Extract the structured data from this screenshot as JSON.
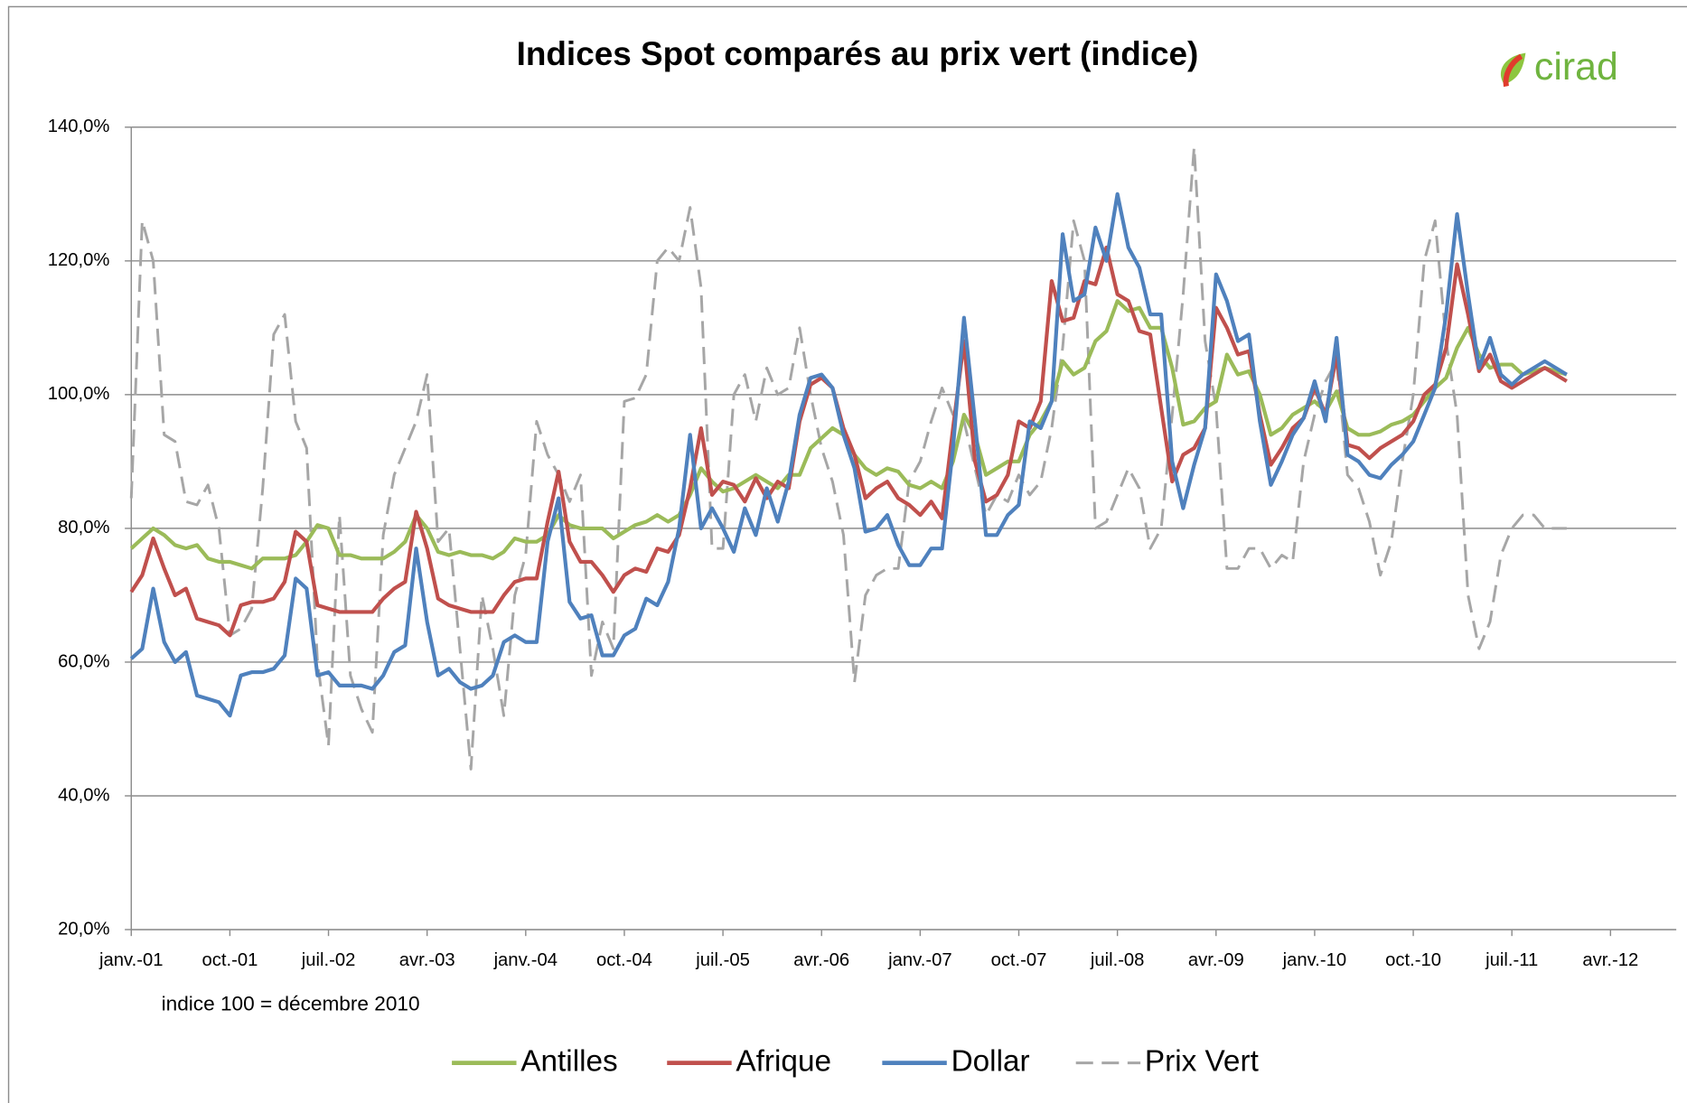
{
  "chart_data": {
    "type": "line",
    "title": "Indices Spot comparés au prix vert (indice)",
    "logo": "cirad",
    "annotation": "indice 100 = décembre 2010",
    "x": [
      "2001-01",
      "2001-02",
      "2001-03",
      "2001-04",
      "2001-05",
      "2001-06",
      "2001-07",
      "2001-08",
      "2001-09",
      "2001-10",
      "2001-11",
      "2001-12",
      "2002-01",
      "2002-02",
      "2002-03",
      "2002-04",
      "2002-05",
      "2002-06",
      "2002-07",
      "2002-08",
      "2002-09",
      "2002-10",
      "2002-11",
      "2002-12",
      "2003-01",
      "2003-02",
      "2003-03",
      "2003-04",
      "2003-05",
      "2003-06",
      "2003-07",
      "2003-08",
      "2003-09",
      "2003-10",
      "2003-11",
      "2003-12",
      "2004-01",
      "2004-02",
      "2004-03",
      "2004-04",
      "2004-05",
      "2004-06",
      "2004-07",
      "2004-08",
      "2004-09",
      "2004-10",
      "2004-11",
      "2004-12",
      "2005-01",
      "2005-02",
      "2005-03",
      "2005-04",
      "2005-05",
      "2005-06",
      "2005-07",
      "2005-08",
      "2005-09",
      "2005-10",
      "2005-11",
      "2005-12",
      "2006-01",
      "2006-02",
      "2006-03",
      "2006-04",
      "2006-05",
      "2006-06",
      "2006-07",
      "2006-08",
      "2006-09",
      "2006-10",
      "2006-11",
      "2006-12",
      "2007-01",
      "2007-02",
      "2007-03",
      "2007-04",
      "2007-05",
      "2007-06",
      "2007-07",
      "2007-08",
      "2007-09",
      "2007-10",
      "2007-11",
      "2007-12",
      "2008-01",
      "2008-02",
      "2008-03",
      "2008-04",
      "2008-05",
      "2008-06",
      "2008-07",
      "2008-08",
      "2008-09",
      "2008-10",
      "2008-11",
      "2008-12",
      "2009-01",
      "2009-02",
      "2009-03",
      "2009-04",
      "2009-05",
      "2009-06",
      "2009-07",
      "2009-08",
      "2009-09",
      "2009-10",
      "2009-11",
      "2009-12",
      "2010-01",
      "2010-02",
      "2010-03",
      "2010-04",
      "2010-05",
      "2010-06",
      "2010-07",
      "2010-08",
      "2010-09",
      "2010-10",
      "2010-11",
      "2010-12",
      "2011-01",
      "2011-02",
      "2011-03",
      "2011-04",
      "2011-05",
      "2011-06",
      "2011-07",
      "2011-08",
      "2011-09",
      "2011-10",
      "2011-11",
      "2011-12"
    ],
    "series": [
      {
        "name": "Antilles",
        "color": "#9bbb59",
        "values": [
          77,
          78.5,
          80,
          79,
          77.5,
          77,
          77.5,
          75.5,
          75,
          75,
          74.5,
          74,
          75.5,
          75.5,
          75.5,
          76,
          78,
          80.5,
          80,
          76,
          76,
          75.5,
          75.5,
          75.5,
          76.5,
          78,
          82,
          80,
          76.5,
          76,
          76.5,
          76,
          76,
          75.5,
          76.5,
          78.5,
          78,
          78,
          79,
          82,
          80.5,
          80,
          80,
          80,
          78.5,
          79.5,
          80.5,
          81,
          82,
          81,
          82,
          85,
          89,
          87,
          85.5,
          86,
          87,
          88,
          87,
          86,
          88,
          88,
          92,
          93.5,
          95,
          94,
          91,
          89,
          88,
          89,
          88.5,
          86.5,
          86,
          87,
          86,
          90,
          97,
          94,
          88,
          89,
          90,
          90,
          94,
          96,
          99,
          105,
          103,
          104,
          108,
          109.5,
          114,
          112.5,
          113,
          110,
          110,
          104,
          95.5,
          96,
          98,
          99,
          106,
          103,
          103.5,
          100,
          94,
          95,
          97,
          98,
          99,
          97.5,
          100.5,
          95,
          94,
          94,
          94.5,
          95.5,
          96,
          97,
          99,
          101,
          102.5,
          107,
          110,
          106,
          104,
          104.5,
          104.5,
          103,
          103.5,
          104,
          103.5,
          103
        ]
      },
      {
        "name": "Afrique",
        "color": "#c0504d",
        "values": [
          70.5,
          73,
          78.5,
          74,
          70,
          71,
          66.5,
          66,
          65.5,
          64,
          68.5,
          69,
          69,
          69.5,
          72,
          79.5,
          78,
          68.5,
          68,
          67.5,
          67.5,
          67.5,
          67.5,
          69.5,
          71,
          72,
          82.5,
          77,
          69.5,
          68.5,
          68,
          67.5,
          67.5,
          67.5,
          70,
          72,
          72.5,
          72.5,
          81,
          88.5,
          78,
          75,
          75,
          73,
          70.5,
          73,
          74,
          73.5,
          77,
          76.5,
          79,
          86,
          95,
          85,
          87,
          86.5,
          84,
          87.5,
          84.5,
          87,
          86,
          96,
          101.5,
          102.5,
          101,
          95,
          91,
          84.5,
          86,
          87,
          84.5,
          83.5,
          82,
          84,
          81.5,
          95,
          108,
          90,
          84,
          85,
          88,
          96,
          95,
          99,
          117,
          111,
          111.5,
          117,
          116.5,
          122,
          115,
          114,
          109.5,
          109,
          98,
          87,
          91,
          92,
          95,
          113,
          110,
          106,
          106.5,
          97,
          89.5,
          92,
          95,
          96.5,
          101,
          97,
          106,
          92.5,
          92,
          90.5,
          92,
          93,
          94,
          96,
          100,
          101.5,
          107,
          119.5,
          112,
          103.5,
          106,
          102,
          101,
          102,
          103,
          104,
          103,
          102
        ]
      },
      {
        "name": "Dollar",
        "color": "#4f81bd",
        "values": [
          60.5,
          62,
          71,
          63,
          60,
          61.5,
          55,
          54.5,
          54,
          52,
          58,
          58.5,
          58.5,
          59,
          61,
          72.5,
          71,
          58,
          58.5,
          56.5,
          56.5,
          56.5,
          56,
          58,
          61.5,
          62.5,
          77,
          66,
          58,
          59,
          57,
          56,
          56.5,
          58,
          63,
          64,
          63,
          63,
          78,
          84.5,
          69,
          66.5,
          67,
          61,
          61,
          64,
          65,
          69.5,
          68.5,
          72,
          80,
          94,
          80,
          83,
          80,
          76.5,
          83,
          79,
          86,
          81,
          87,
          97,
          102.5,
          103,
          101,
          94,
          89,
          79.5,
          80,
          82,
          77.5,
          74.5,
          74.5,
          77,
          77,
          92,
          111.5,
          96,
          79,
          79,
          82,
          83.5,
          96,
          95,
          99,
          124,
          114,
          115,
          125,
          120,
          130,
          122,
          119,
          112,
          112,
          90,
          83,
          89.5,
          95,
          118,
          114,
          108,
          109,
          96,
          86.5,
          90,
          94,
          96.5,
          102,
          96,
          108.5,
          91,
          90,
          88,
          87.5,
          89.5,
          91,
          93,
          97,
          101,
          112,
          127,
          115,
          104,
          108.5,
          103,
          101.5,
          103,
          104,
          105,
          104,
          103
        ]
      },
      {
        "name": "Prix Vert",
        "color": "#a6a6a6",
        "dashed": true,
        "values": [
          84.5,
          126,
          120,
          94,
          93,
          84,
          83.5,
          86.5,
          80,
          64,
          65,
          68,
          86,
          109,
          112,
          96,
          92,
          60,
          47.5,
          82,
          58,
          53,
          49.5,
          79,
          88,
          92,
          96,
          103,
          78,
          80,
          62,
          44,
          70,
          62,
          52,
          70,
          76,
          96,
          91,
          88,
          84,
          88,
          58,
          66,
          62,
          99,
          99.5,
          103,
          120,
          122,
          120,
          128,
          116,
          77,
          77,
          100,
          103,
          96,
          104,
          100,
          101,
          110,
          100,
          92,
          87,
          79,
          57,
          70,
          73,
          74,
          74,
          87,
          90,
          96,
          101,
          97,
          96,
          89,
          82,
          85,
          84,
          88,
          85,
          87,
          95,
          107,
          126,
          120,
          80,
          81,
          85,
          89,
          86,
          77,
          80,
          97,
          115,
          137,
          108,
          98,
          74,
          74,
          77,
          77,
          74,
          76,
          75,
          90,
          97,
          102,
          105,
          88,
          86,
          81,
          73,
          78,
          90,
          100,
          120,
          126,
          108,
          97,
          70,
          62,
          66,
          76,
          80,
          82,
          82,
          80,
          80,
          80
        ]
      }
    ],
    "xlim": [
      "2001-01",
      "2012-10"
    ],
    "xticks": [
      {
        "value": "2001-01",
        "label": "janv.-01"
      },
      {
        "value": "2001-10",
        "label": "oct.-01"
      },
      {
        "value": "2002-07",
        "label": "juil.-02"
      },
      {
        "value": "2003-04",
        "label": "avr.-03"
      },
      {
        "value": "2004-01",
        "label": "janv.-04"
      },
      {
        "value": "2004-10",
        "label": "oct.-04"
      },
      {
        "value": "2005-07",
        "label": "juil.-05"
      },
      {
        "value": "2006-04",
        "label": "avr.-06"
      },
      {
        "value": "2007-01",
        "label": "janv.-07"
      },
      {
        "value": "2007-10",
        "label": "oct.-07"
      },
      {
        "value": "2008-07",
        "label": "juil.-08"
      },
      {
        "value": "2009-04",
        "label": "avr.-09"
      },
      {
        "value": "2010-01",
        "label": "janv.-10"
      },
      {
        "value": "2010-10",
        "label": "oct.-10"
      },
      {
        "value": "2011-07",
        "label": "juil.-11"
      },
      {
        "value": "2012-04",
        "label": "avr.-12"
      }
    ],
    "ylim": [
      20,
      140
    ],
    "yticks": [
      {
        "value": 20,
        "label": "20,0%"
      },
      {
        "value": 40,
        "label": "40,0%"
      },
      {
        "value": 60,
        "label": "60,0%"
      },
      {
        "value": 80,
        "label": "80,0%"
      },
      {
        "value": 100,
        "label": "100,0%"
      },
      {
        "value": 120,
        "label": "120,0%"
      },
      {
        "value": 140,
        "label": "140,0%"
      }
    ],
    "grid": true,
    "legend": "bottom"
  }
}
